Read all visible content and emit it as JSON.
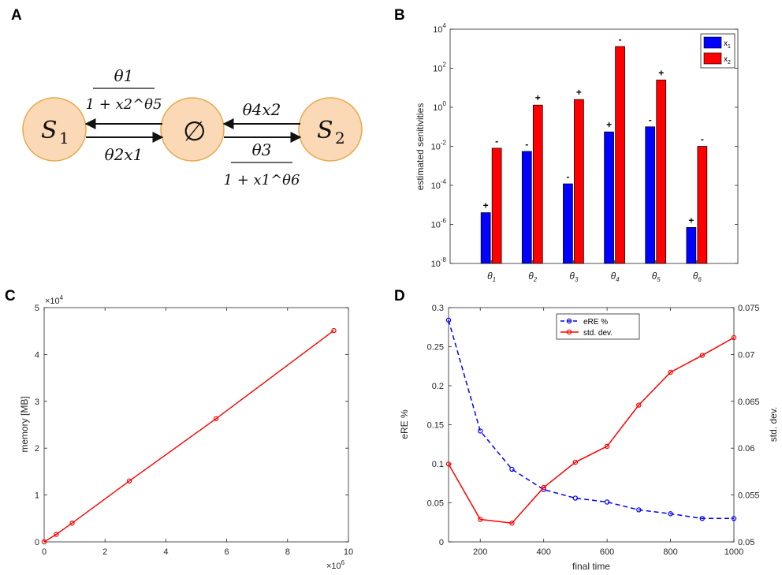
{
  "panels": {
    "a": {
      "letter": "A",
      "species_left": "S",
      "species_left_sub": "1",
      "species_right": "S",
      "species_right_sub": "2",
      "null_symbol": "∅",
      "rate_top_left_num": "θ1",
      "rate_top_left_den": "1 + x2^θ5",
      "rate_bottom_left": "θ2x1",
      "rate_top_right": "θ4x2",
      "rate_bottom_right_num": "θ3",
      "rate_bottom_right_den": "1 + x1^θ6"
    },
    "b": {
      "letter": "B"
    },
    "c": {
      "letter": "C"
    },
    "d": {
      "letter": "D"
    }
  },
  "colors": {
    "blue": "#0000ff",
    "red": "#ff0000",
    "node_fill": "#fbd9b6",
    "node_stroke": "#e8a94a"
  },
  "chart_data": [
    {
      "panel": "B",
      "type": "bar",
      "yscale": "log",
      "ylabel": "estimated senitivities",
      "ylim": [
        1e-08,
        10000
      ],
      "yticks": [
        "10^-8",
        "10^-6",
        "10^-4",
        "10^-2",
        "10^0",
        "10^2",
        "10^4"
      ],
      "categories": [
        "θ1",
        "θ2",
        "θ3",
        "θ4",
        "θ5",
        "θ6"
      ],
      "legend_position": "top-right",
      "series": [
        {
          "name": "x1",
          "color": "#0000ff",
          "values": [
            4e-06,
            0.0055,
            0.00012,
            0.055,
            0.1,
            7e-07
          ],
          "signs": [
            "+",
            "-",
            "-",
            "+",
            "-",
            "+"
          ]
        },
        {
          "name": "x2",
          "color": "#ff0000",
          "values": [
            0.008,
            1.3,
            2.5,
            1300,
            25,
            0.01
          ],
          "signs": [
            "-",
            "+",
            "+",
            "-",
            "+",
            "-"
          ]
        }
      ]
    },
    {
      "panel": "C",
      "type": "line",
      "ylabel": "memory [MB]",
      "xlim": [
        0,
        10000000
      ],
      "ylim": [
        0,
        50000
      ],
      "xticks": [
        "0",
        "2",
        "4",
        "6",
        "8",
        "10"
      ],
      "yticks": [
        "0",
        "1",
        "2",
        "3",
        "4",
        "5"
      ],
      "x_exponent": "×10^6",
      "y_exponent": "×10^4",
      "series": [
        {
          "color": "#ff0000",
          "x": [
            0,
            400000,
            920000,
            2800000,
            5650000,
            9520000
          ],
          "y": [
            0,
            1600,
            4000,
            13000,
            26300,
            45100
          ]
        }
      ]
    },
    {
      "panel": "D",
      "type": "line",
      "xlabel": "final time",
      "ylabel_left": "eRE %",
      "ylabel_right": "std. dev.",
      "xlim": [
        100,
        1000
      ],
      "ylim_left": [
        0,
        0.3
      ],
      "ylim_right": [
        0.05,
        0.075
      ],
      "xticks": [
        "200",
        "400",
        "600",
        "800",
        "1000"
      ],
      "yticks_left": [
        "0",
        "0.05",
        "0.1",
        "0.15",
        "0.2",
        "0.25",
        "0.3"
      ],
      "yticks_right": [
        "0.05",
        "0.055",
        "0.06",
        "0.065",
        "0.07",
        "0.075"
      ],
      "legend_position": "top-center",
      "x": [
        100,
        200,
        300,
        400,
        500,
        600,
        700,
        800,
        900,
        1000
      ],
      "series": [
        {
          "name": "eRE %",
          "axis": "left",
          "color": "#0000ff",
          "style": "dashed",
          "values": [
            0.284,
            0.142,
            0.093,
            0.067,
            0.056,
            0.051,
            0.041,
            0.036,
            0.03,
            0.03
          ]
        },
        {
          "name": "std. dev.",
          "axis": "right",
          "color": "#ff0000",
          "style": "solid",
          "values": [
            0.0583,
            0.0524,
            0.052,
            0.0558,
            0.0585,
            0.0602,
            0.0646,
            0.0681,
            0.0699,
            0.0718
          ]
        }
      ]
    }
  ]
}
